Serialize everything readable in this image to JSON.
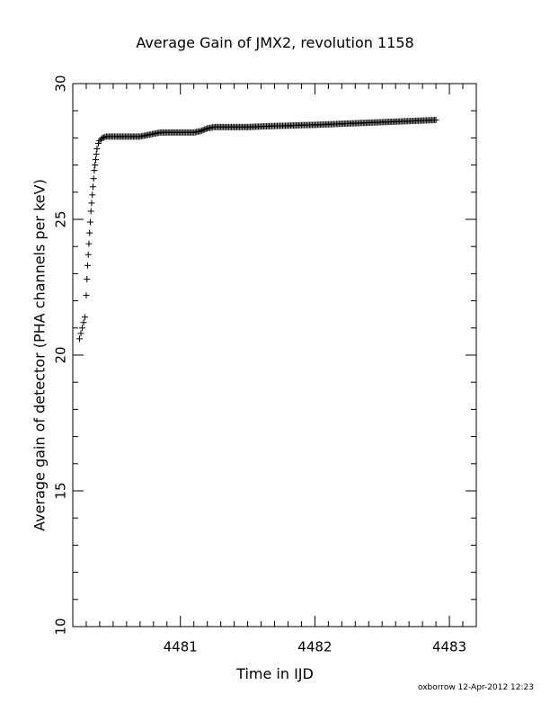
{
  "chart_data": {
    "type": "scatter",
    "title": "Average Gain of JMX2, revolution 1158",
    "xlabel": "Time in IJD",
    "ylabel": "Average gain of detector (PHA channels per keV)",
    "xlim": [
      4480.2,
      4483.2
    ],
    "ylim": [
      10,
      30
    ],
    "x_ticks": [
      4481,
      4482,
      4483
    ],
    "y_ticks": [
      10,
      15,
      20,
      25,
      30
    ],
    "x_tick_labels": [
      "4481",
      "4482",
      "4483"
    ],
    "y_tick_labels": [
      "10",
      "15",
      "20",
      "25",
      "30"
    ],
    "marker": "plus",
    "grid": false,
    "series": [
      {
        "x": [
          4480.25,
          4480.26,
          4480.27,
          4480.28,
          4480.29,
          4480.3,
          4480.305,
          4480.31,
          4480.315,
          4480.32,
          4480.325,
          4480.33,
          4480.335,
          4480.34,
          4480.345,
          4480.35,
          4480.355,
          4480.36,
          4480.365,
          4480.37,
          4480.375,
          4480.38,
          4480.39,
          4480.4,
          4480.42,
          4480.45,
          4480.5,
          4480.55,
          4480.6,
          4480.65,
          4480.7,
          4480.75,
          4480.8,
          4480.85,
          4480.9,
          4480.95,
          4481.0,
          4481.05,
          4481.1,
          4481.15,
          4481.2,
          4481.25,
          4481.3,
          4481.4,
          4481.5,
          4481.6,
          4481.7,
          4481.8,
          4481.9,
          4482.0,
          4482.1,
          4482.2,
          4482.3,
          4482.4,
          4482.5,
          4482.6,
          4482.7,
          4482.8,
          4482.9
        ],
        "y": [
          20.6,
          20.8,
          21.0,
          21.2,
          21.4,
          22.2,
          22.8,
          23.3,
          23.7,
          24.1,
          24.5,
          24.9,
          25.3,
          25.6,
          25.9,
          26.2,
          26.5,
          26.8,
          27.0,
          27.2,
          27.4,
          27.6,
          27.8,
          27.9,
          28.0,
          28.05,
          28.05,
          28.05,
          28.05,
          28.05,
          28.05,
          28.1,
          28.15,
          28.2,
          28.2,
          28.2,
          28.2,
          28.2,
          28.2,
          28.25,
          28.35,
          28.4,
          28.4,
          28.4,
          28.4,
          28.42,
          28.44,
          28.45,
          28.47,
          28.48,
          28.5,
          28.52,
          28.54,
          28.56,
          28.58,
          28.6,
          28.62,
          28.64,
          28.66
        ]
      }
    ]
  },
  "footer": "oxborrow 12-Apr-2012 12:23"
}
